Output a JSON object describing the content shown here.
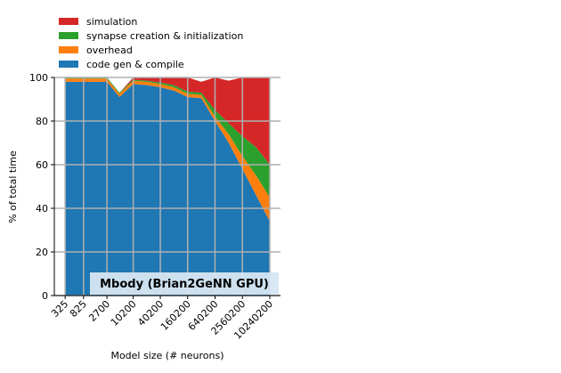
{
  "chart_data": {
    "type": "stacked_area",
    "annotation": "Mbody (Brian2GeNN GPU)",
    "xlabel": "Model size (# neurons)",
    "ylabel": "% of total time",
    "x": [
      325,
      825,
      2700,
      5100,
      10200,
      20200,
      40200,
      80200,
      160200,
      320200,
      640200,
      1280200,
      2560200,
      5120200,
      10240200
    ],
    "xscale": "log",
    "xlim": [
      188,
      17600000
    ],
    "xticks": [
      325,
      825,
      2700,
      10200,
      40200,
      160200,
      640200,
      2560200,
      10240200
    ],
    "ylim": [
      0,
      100
    ],
    "yticks": [
      0,
      20,
      40,
      60,
      80,
      100
    ],
    "grid": true,
    "legend": "upper left",
    "series": [
      {
        "name": "code gen & compile",
        "color": "#1f77b4",
        "values": [
          98,
          98,
          98,
          91,
          97,
          96.5,
          95.5,
          94,
          91,
          90.5,
          80,
          70,
          58,
          46,
          34
        ]
      },
      {
        "name": "overhead",
        "color": "#ff7f0e",
        "values": [
          1.5,
          1.5,
          1.5,
          1.5,
          1.5,
          1.5,
          1.5,
          1.5,
          1.5,
          1.5,
          2,
          4,
          6,
          9,
          11
        ]
      },
      {
        "name": "synapse creation & initialization",
        "color": "#2ca02c",
        "values": [
          0.5,
          0.5,
          0.5,
          0.5,
          0.5,
          0.5,
          0.7,
          1,
          1,
          1,
          3,
          5,
          9,
          13,
          15
        ]
      },
      {
        "name": "simulation",
        "color": "#d62728",
        "values": [
          0,
          0,
          0,
          0,
          1,
          1.5,
          2.3,
          3.5,
          6.5,
          5,
          15,
          19.5,
          27,
          32,
          40
        ]
      }
    ]
  }
}
